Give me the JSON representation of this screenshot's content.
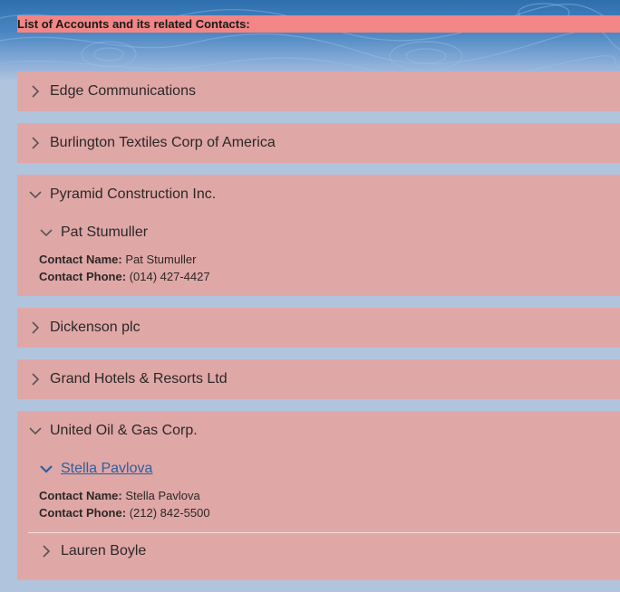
{
  "header": {
    "title": "List of Accounts and its related Contacts:"
  },
  "labels": {
    "contact_name": "Contact Name:",
    "contact_phone": "Contact Phone:"
  },
  "colors": {
    "header_bar": "#f28585",
    "card": "#e0a7a7",
    "link": "#2f5f99",
    "background": "#b0c4de"
  },
  "accounts": [
    {
      "name": "Edge Communications",
      "expanded": false
    },
    {
      "name": "Burlington Textiles Corp of America",
      "expanded": false
    },
    {
      "name": "Pyramid Construction Inc.",
      "expanded": true,
      "contacts": [
        {
          "name": "Pat Stumuller",
          "expanded": true,
          "contact_name": "Pat Stumuller",
          "contact_phone": "(014) 427-4427"
        }
      ]
    },
    {
      "name": "Dickenson plc",
      "expanded": false
    },
    {
      "name": "Grand Hotels & Resorts Ltd",
      "expanded": false
    },
    {
      "name": "United Oil & Gas Corp.",
      "expanded": true,
      "contacts": [
        {
          "name": "Stella Pavlova",
          "expanded": true,
          "contact_name": "Stella Pavlova",
          "contact_phone": "(212) 842-5500"
        },
        {
          "name": "Lauren Boyle",
          "expanded": false
        }
      ]
    }
  ]
}
